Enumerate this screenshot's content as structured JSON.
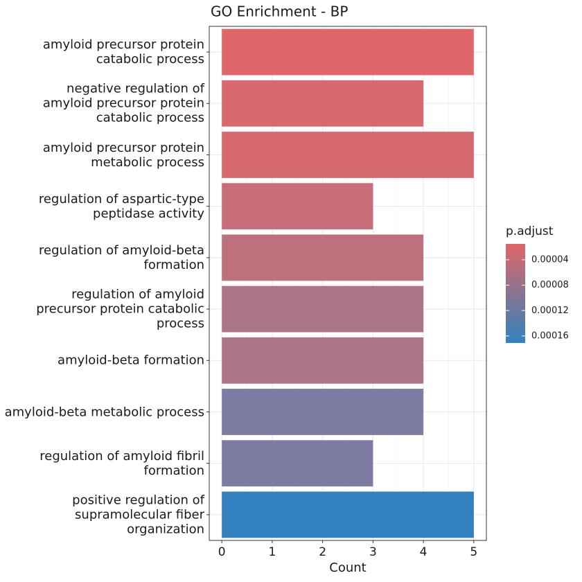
{
  "chart_data": {
    "type": "barh",
    "title": "GO Enrichment - BP",
    "xlabel": "Count",
    "categories": [
      "amyloid precursor protein\ncatabolic process",
      "negative regulation of\namyloid precursor protein\ncatabolic process",
      "amyloid precursor protein\nmetabolic process",
      "regulation of aspartic-type\npeptidase activity",
      "regulation of amyloid-beta\nformation",
      "regulation of amyloid\nprecursor protein catabolic\nprocess",
      "amyloid-beta formation",
      "amyloid-beta metabolic process",
      "regulation of amyloid fibril\nformation",
      "positive regulation of\nsupramolecular fiber\norganization"
    ],
    "values": [
      5,
      4,
      5,
      3,
      4,
      4,
      4,
      4,
      3,
      5
    ],
    "colors": [
      "#e06769",
      "#d8696e",
      "#d5696e",
      "#c76e78",
      "#bc717c",
      "#ab7487",
      "#ab7487",
      "#7f7ca3",
      "#7f7ca3",
      "#3280bd"
    ],
    "xlim": [
      -0.25,
      5.25
    ],
    "xticks": [
      0,
      1,
      2,
      3,
      4,
      5
    ],
    "grid": true,
    "colorbar": {
      "title": "p.adjust",
      "lim": [
        1.5e-05,
        0.000171
      ],
      "ticks": [
        4e-05,
        8e-05,
        0.00012,
        0.00016
      ],
      "colors": [
        "#e06666",
        "#3182bd"
      ]
    }
  }
}
